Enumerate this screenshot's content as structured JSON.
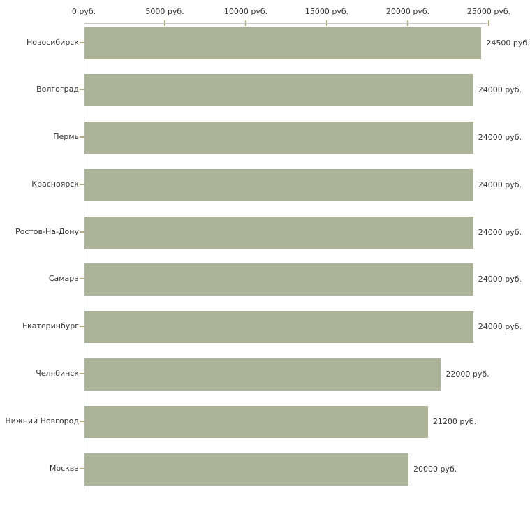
{
  "chart_data": {
    "type": "bar",
    "orientation": "horizontal",
    "title": "",
    "categories": [
      "Новосибирск",
      "Волгоград",
      "Пермь",
      "Красноярск",
      "Ростов-На-Дону",
      "Самара",
      "Екатеринбург",
      "Челябинск",
      "Нижний Новгород",
      "Москва"
    ],
    "values": [
      24500,
      24000,
      24000,
      24000,
      24000,
      24000,
      24000,
      22000,
      21200,
      20000
    ],
    "value_labels": [
      "24500 руб.",
      "24000 руб.",
      "24000 руб.",
      "24000 руб.",
      "24000 руб.",
      "24000 руб.",
      "24000 руб.",
      "22000 руб.",
      "21200 руб.",
      "20000 руб."
    ],
    "unit": "руб.",
    "x_axis": {
      "position": "top",
      "min": 0,
      "max": 25000,
      "ticks": [
        0,
        5000,
        10000,
        15000,
        20000,
        25000
      ],
      "tick_labels": [
        "0 руб.",
        "5000 руб.",
        "10000 руб.",
        "15000 руб.",
        "20000 руб.",
        "25000 руб."
      ]
    },
    "grid": false,
    "legend": false,
    "colors": {
      "bar": "#adb399",
      "axis_line": "#c6c6c6",
      "tick_mark": "#b3ab82",
      "text": "#333333",
      "background": "#ffffff"
    }
  }
}
